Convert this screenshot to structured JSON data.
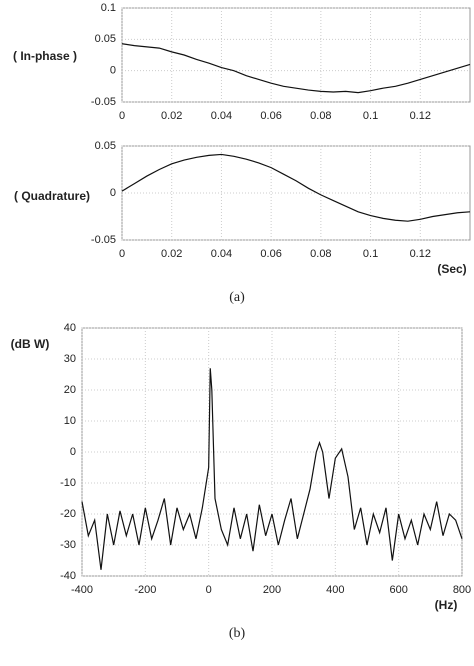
{
  "chart_data": [
    {
      "type": "line",
      "ylabel": "( In-phase )",
      "x": [
        0,
        0.005,
        0.01,
        0.015,
        0.02,
        0.025,
        0.03,
        0.035,
        0.04,
        0.045,
        0.05,
        0.055,
        0.06,
        0.065,
        0.07,
        0.075,
        0.08,
        0.085,
        0.09,
        0.095,
        0.1,
        0.105,
        0.11,
        0.115,
        0.12,
        0.125,
        0.13,
        0.135,
        0.14
      ],
      "series": [
        {
          "color": "#111111",
          "values": [
            0.043,
            0.04,
            0.038,
            0.036,
            0.03,
            0.025,
            0.018,
            0.012,
            0.005,
            0.0,
            -0.008,
            -0.014,
            -0.02,
            -0.025,
            -0.028,
            -0.031,
            -0.033,
            -0.034,
            -0.033,
            -0.035,
            -0.032,
            -0.028,
            -0.025,
            -0.02,
            -0.014,
            -0.008,
            -0.002,
            0.004,
            0.01
          ]
        }
      ],
      "xlim": [
        0,
        0.14
      ],
      "xticks": [
        0,
        0.02,
        0.04,
        0.06,
        0.08,
        0.1,
        0.12
      ],
      "ylim": [
        -0.05,
        0.1
      ],
      "yticks": [
        -0.05,
        0,
        0.05,
        0.1
      ],
      "grid": true
    },
    {
      "type": "line",
      "ylabel": "( Quadrature)",
      "xlabel": "(Sec)",
      "caption": "(a)",
      "x": [
        0,
        0.005,
        0.01,
        0.015,
        0.02,
        0.025,
        0.03,
        0.035,
        0.04,
        0.045,
        0.05,
        0.055,
        0.06,
        0.065,
        0.07,
        0.075,
        0.08,
        0.085,
        0.09,
        0.095,
        0.1,
        0.105,
        0.11,
        0.115,
        0.12,
        0.125,
        0.13,
        0.135,
        0.14
      ],
      "series": [
        {
          "color": "#111111",
          "values": [
            0.002,
            0.01,
            0.018,
            0.025,
            0.031,
            0.035,
            0.038,
            0.04,
            0.041,
            0.039,
            0.036,
            0.032,
            0.027,
            0.02,
            0.013,
            0.005,
            -0.002,
            -0.008,
            -0.014,
            -0.02,
            -0.024,
            -0.027,
            -0.029,
            -0.03,
            -0.028,
            -0.025,
            -0.023,
            -0.021,
            -0.02
          ]
        }
      ],
      "xlim": [
        0,
        0.14
      ],
      "xticks": [
        0,
        0.02,
        0.04,
        0.06,
        0.08,
        0.1,
        0.12
      ],
      "ylim": [
        -0.05,
        0.05
      ],
      "yticks": [
        -0.05,
        0,
        0.05
      ],
      "grid": true
    },
    {
      "type": "line",
      "ylabel": "(dB W)",
      "xlabel": "(Hz)",
      "caption": "(b)",
      "x": [
        -400,
        -380,
        -360,
        -340,
        -320,
        -300,
        -280,
        -260,
        -240,
        -220,
        -200,
        -180,
        -160,
        -140,
        -120,
        -100,
        -80,
        -60,
        -40,
        -20,
        0,
        5,
        10,
        20,
        40,
        60,
        80,
        100,
        120,
        140,
        160,
        180,
        200,
        220,
        240,
        260,
        280,
        300,
        320,
        340,
        350,
        360,
        380,
        400,
        420,
        440,
        460,
        480,
        500,
        520,
        540,
        560,
        580,
        600,
        620,
        640,
        660,
        680,
        700,
        720,
        740,
        760,
        780,
        800
      ],
      "series": [
        {
          "color": "#111111",
          "values": [
            -16,
            -27,
            -22,
            -38,
            -20,
            -30,
            -19,
            -27,
            -20,
            -30,
            -18,
            -28,
            -22,
            -15,
            -30,
            -18,
            -25,
            -20,
            -28,
            -18,
            -5,
            27,
            20,
            -15,
            -25,
            -30,
            -18,
            -28,
            -20,
            -32,
            -17,
            -27,
            -20,
            -30,
            -22,
            -15,
            -28,
            -20,
            -12,
            0,
            3,
            0,
            -15,
            -2,
            1,
            -8,
            -25,
            -18,
            -30,
            -20,
            -26,
            -18,
            -35,
            -20,
            -28,
            -22,
            -30,
            -20,
            -25,
            -16,
            -27,
            -20,
            -22,
            -28
          ]
        }
      ],
      "xlim": [
        -400,
        800
      ],
      "xticks": [
        -400,
        -200,
        0,
        200,
        400,
        600,
        800
      ],
      "ylim": [
        -40,
        40
      ],
      "yticks": [
        -40,
        -30,
        -20,
        -10,
        0,
        10,
        20,
        30,
        40
      ],
      "grid": true
    }
  ]
}
